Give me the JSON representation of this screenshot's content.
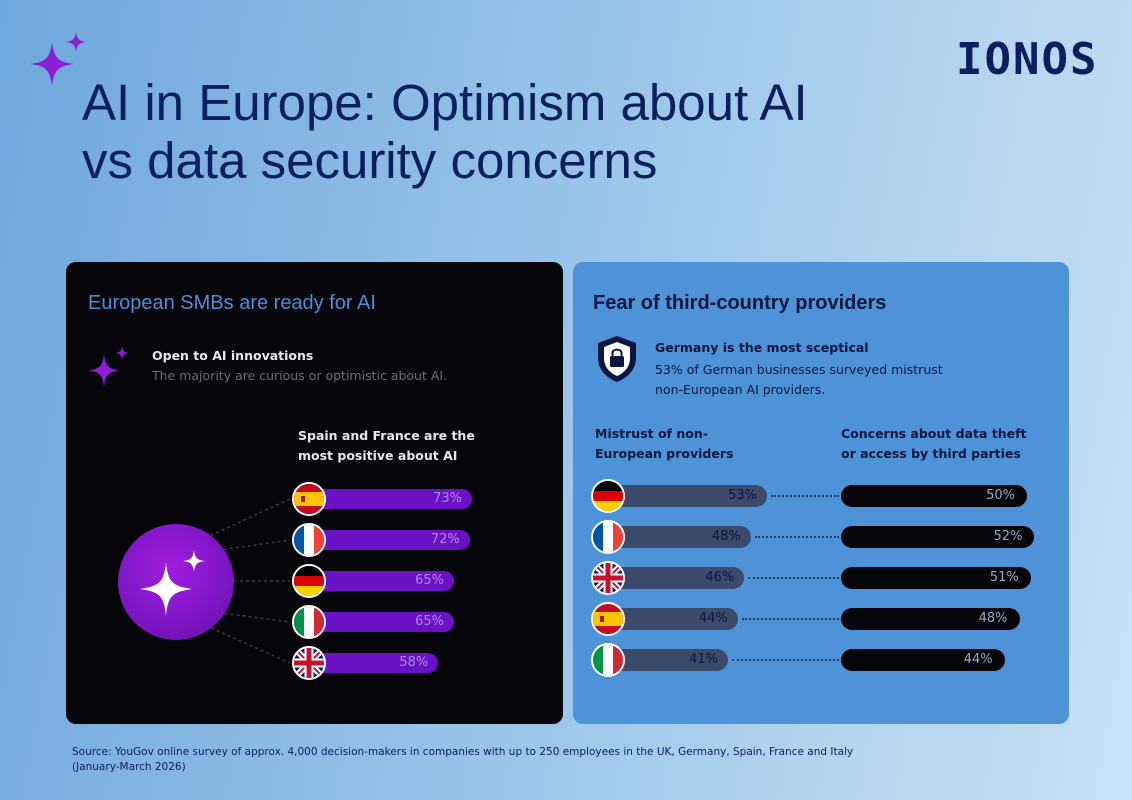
{
  "brand": "IONOS",
  "title_line1": "AI in Europe: Optimism about AI",
  "title_line2": "vs data security concerns",
  "left_panel": {
    "heading": "European SMBs are ready for AI",
    "open_title": "Open to AI innovations",
    "open_desc": "The majority are curious or optimistic about AI.",
    "subhead_line1": "Spain and France are the",
    "subhead_line2": "most positive about AI"
  },
  "right_panel": {
    "heading": "Fear of third-country providers",
    "germany_title": "Germany is the most sceptical",
    "germany_desc_line1": "53% of German businesses surveyed mistrust",
    "germany_desc_line2": "non-European AI providers.",
    "col1_line1": "Mistrust of non-",
    "col1_line2": "European providers",
    "col2_line1": "Concerns about data theft",
    "col2_line2": "or access by third parties"
  },
  "chart_data": [
    {
      "type": "bar",
      "title": "Spain and France are the most positive about AI",
      "categories": [
        "Spain",
        "France",
        "Germany",
        "Italy",
        "UK"
      ],
      "values": [
        73,
        72,
        65,
        65,
        58
      ],
      "labels": [
        "73%",
        "72%",
        "65%",
        "65%",
        "58%"
      ],
      "unit": "%",
      "colors": [
        "#6b12c6"
      ]
    },
    {
      "type": "bar",
      "title": "Fear of third-country providers",
      "categories": [
        "Germany",
        "France",
        "UK",
        "Spain",
        "Italy"
      ],
      "series": [
        {
          "name": "Mistrust of non-European providers",
          "values": [
            53,
            48,
            46,
            44,
            41
          ],
          "labels": [
            "53%",
            "48%",
            "46%",
            "44%",
            "41%"
          ],
          "color": "#3c4a6c"
        },
        {
          "name": "Concerns about data theft or access by third parties",
          "values": [
            50,
            52,
            51,
            48,
            44
          ],
          "labels": [
            "50%",
            "52%",
            "51%",
            "48%",
            "44%"
          ],
          "color": "#05050a"
        }
      ],
      "unit": "%"
    }
  ],
  "source_line1": "Source: YouGov online survey of approx. 4,000 decision-makers in companies with up to 250 employees in the UK, Germany, Spain, France and Italy",
  "source_line2": "(January-March 2026)"
}
